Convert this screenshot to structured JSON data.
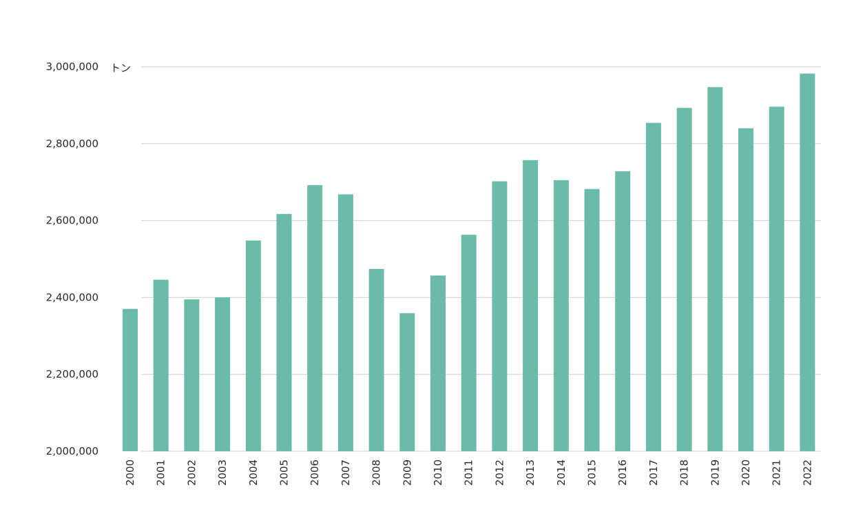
{
  "chart_data": {
    "type": "bar",
    "unit_label": "トン",
    "categories": [
      "2000",
      "2001",
      "2002",
      "2003",
      "2004",
      "2005",
      "2006",
      "2007",
      "2008",
      "2009",
      "2010",
      "2011",
      "2012",
      "2013",
      "2014",
      "2015",
      "2016",
      "2017",
      "2018",
      "2019",
      "2020",
      "2021",
      "2022"
    ],
    "values": [
      2370000,
      2446000,
      2395000,
      2400000,
      2548000,
      2617000,
      2692000,
      2668000,
      2474000,
      2359000,
      2457000,
      2563000,
      2702000,
      2757000,
      2705000,
      2682000,
      2728000,
      2854000,
      2893000,
      2947000,
      2840000,
      2896000,
      2982000
    ],
    "yticks": [
      2000000,
      2200000,
      2400000,
      2600000,
      2800000,
      3000000
    ],
    "ytick_labels": [
      "2,000,000",
      "2,200,000",
      "2,400,000",
      "2,600,000",
      "2,800,000",
      "3,000,000"
    ],
    "ylim": [
      2000000,
      3000000
    ],
    "grid": true,
    "bar_color": "#6bbbab",
    "grid_color": "#c9d3d3"
  }
}
